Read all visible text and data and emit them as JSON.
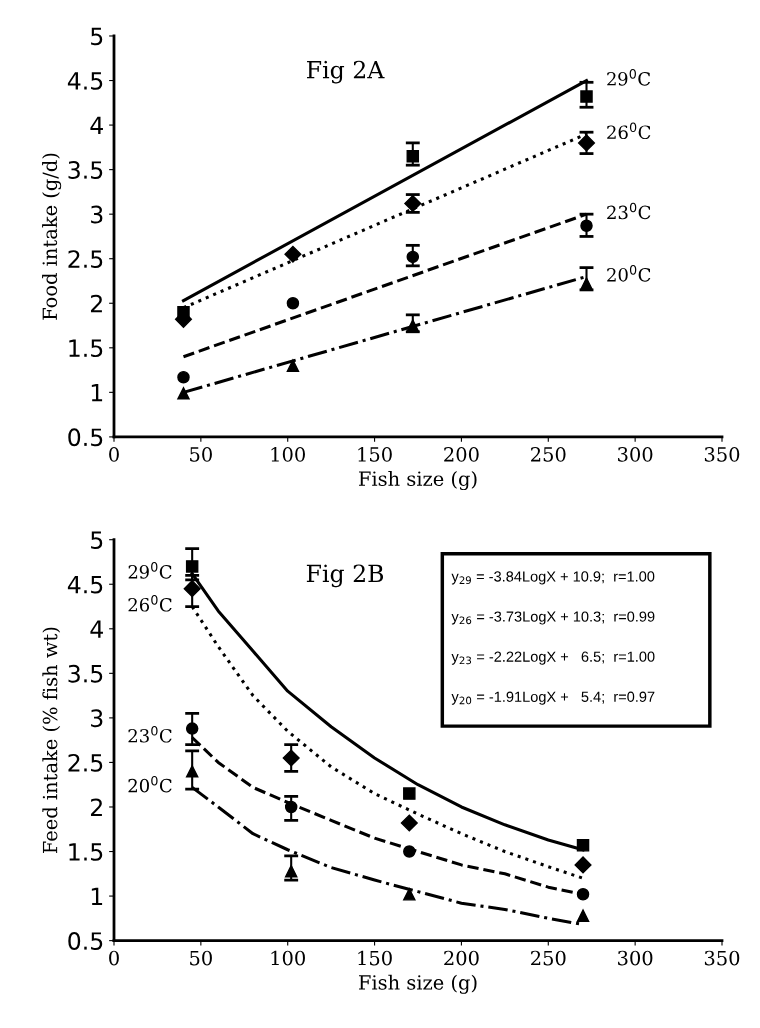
{
  "chart_data": [
    {
      "type": "scatter",
      "title": "Fig 2A",
      "xlabel": "Fish size (g)",
      "ylabel": "Food intake (g/d)",
      "xlim": [
        0,
        350
      ],
      "xticks": [
        0,
        50,
        100,
        150,
        200,
        250,
        300,
        350
      ],
      "ylim": [
        0.5,
        5
      ],
      "yticks": [
        0.5,
        1,
        1.5,
        2,
        2.5,
        3,
        3.5,
        4,
        4.5,
        5
      ],
      "grid": false,
      "legend": false,
      "series": [
        {
          "color": "#000000",
          "marker": "square",
          "x": [
            40,
            172,
            272
          ],
          "values": [
            1.9,
            3.65,
            4.32
          ],
          "errors": [
            null,
            [
              3.55,
              3.8
            ],
            [
              4.2,
              4.48
            ]
          ]
        },
        {
          "color": "#000000",
          "marker": "diamond",
          "x": [
            40,
            103,
            172,
            272
          ],
          "values": [
            1.82,
            2.55,
            3.12,
            3.8
          ],
          "errors": [
            null,
            null,
            [
              3.02,
              3.22
            ],
            [
              3.68,
              3.92
            ]
          ]
        },
        {
          "color": "#000000",
          "marker": "circle",
          "x": [
            40,
            103,
            172,
            272
          ],
          "values": [
            1.17,
            2.0,
            2.52,
            2.87
          ],
          "errors": [
            null,
            null,
            [
              2.42,
              2.65
            ],
            [
              2.75,
              3.0
            ]
          ]
        },
        {
          "color": "#000000",
          "marker": "triangle",
          "x": [
            40,
            103,
            172,
            272
          ],
          "values": [
            0.99,
            1.3,
            1.75,
            2.22
          ],
          "errors": [
            null,
            null,
            [
              1.68,
              1.87
            ],
            [
              2.15,
              2.4
            ]
          ]
        },
        {
          "type": "line",
          "name": "29$^{0}$C",
          "color": "#000000",
          "line_style": "solid",
          "x": [
            40,
            272
          ],
          "values": [
            2.03,
            4.5
          ]
        },
        {
          "type": "line",
          "name": "26$^{0}$C",
          "color": "#000000",
          "line_style": "dotted",
          "x": [
            40,
            272
          ],
          "values": [
            1.95,
            3.9
          ]
        },
        {
          "type": "line",
          "name": "23$^{0}$C",
          "color": "#000000",
          "line_style": "dashed",
          "x": [
            40,
            272
          ],
          "values": [
            1.4,
            3.0
          ]
        },
        {
          "type": "line",
          "name": "20$^{0}$C",
          "color": "#000000",
          "line_style": "dashdot",
          "x": [
            40,
            272
          ],
          "values": [
            1.0,
            2.3
          ]
        }
      ]
    },
    {
      "type": "scatter",
      "title": "Fig 2B",
      "xlabel": "Fish size (g)",
      "ylabel": "Feed intake (% fish wt)",
      "xlim": [
        0,
        350
      ],
      "xticks": [
        0,
        50,
        100,
        150,
        200,
        250,
        300,
        350
      ],
      "ylim": [
        0.5,
        5
      ],
      "yticks": [
        0.5,
        1,
        1.5,
        2,
        2.5,
        3,
        3.5,
        4,
        4.5,
        5
      ],
      "grid": false,
      "legend": false,
      "annotations": [
        "y$_{29}$ = -3.84LogX + 10.9;  r=1.00",
        "y$_{26}$ = -3.73LogX + 10.3;  r=0.99",
        "y$_{23}$ = -2.22LogX +   6.5;  r=1.00",
        "y$_{20}$ = -1.91LogX +   5.4;  r=0.97"
      ],
      "series": [
        {
          "color": "#000000",
          "marker": "square",
          "x": [
            45,
            170,
            270
          ],
          "values": [
            4.7,
            2.15,
            1.57
          ],
          "errors": [
            [
              4.55,
              4.9
            ],
            null,
            null
          ]
        },
        {
          "color": "#000000",
          "marker": "diamond",
          "x": [
            45,
            102,
            170,
            270
          ],
          "values": [
            4.45,
            2.55,
            1.82,
            1.35
          ],
          "errors": [
            [
              4.25,
              4.6
            ],
            [
              2.4,
              2.7
            ],
            null,
            null
          ]
        },
        {
          "color": "#000000",
          "marker": "circle",
          "x": [
            45,
            102,
            170,
            270
          ],
          "values": [
            2.88,
            2.0,
            1.5,
            1.02
          ],
          "errors": [
            [
              2.7,
              3.05
            ],
            [
              1.85,
              2.12
            ],
            null,
            null
          ]
        },
        {
          "color": "#000000",
          "marker": "triangle",
          "x": [
            45,
            102,
            170,
            270
          ],
          "values": [
            2.4,
            1.28,
            1.02,
            0.78
          ],
          "errors": [
            [
              2.2,
              2.63
            ],
            [
              1.18,
              1.45
            ],
            null,
            null
          ]
        },
        {
          "type": "line",
          "name": "29$^{0}$C",
          "color": "#000000",
          "line_style": "solid",
          "x": [
            45,
            60,
            80,
            100,
            125,
            150,
            175,
            200,
            225,
            250,
            270
          ],
          "values": [
            4.62,
            4.2,
            3.75,
            3.3,
            2.9,
            2.55,
            2.25,
            2.0,
            1.8,
            1.63,
            1.52
          ]
        },
        {
          "type": "line",
          "name": "26$^{0}$C",
          "color": "#000000",
          "line_style": "dotted",
          "x": [
            45,
            60,
            80,
            100,
            125,
            150,
            175,
            200,
            225,
            250,
            270
          ],
          "values": [
            4.25,
            3.8,
            3.25,
            2.85,
            2.45,
            2.15,
            1.92,
            1.7,
            1.5,
            1.33,
            1.2
          ]
        },
        {
          "type": "line",
          "name": "23$^{0}$C",
          "color": "#000000",
          "line_style": "dashed",
          "x": [
            45,
            60,
            80,
            100,
            125,
            150,
            175,
            200,
            225,
            250,
            270
          ],
          "values": [
            2.78,
            2.5,
            2.22,
            2.05,
            1.85,
            1.65,
            1.5,
            1.35,
            1.25,
            1.1,
            1.02
          ]
        },
        {
          "type": "line",
          "name": "20$^{0}$C",
          "color": "#000000",
          "line_style": "dashdot",
          "x": [
            45,
            60,
            80,
            100,
            125,
            150,
            175,
            200,
            225,
            250,
            270
          ],
          "values": [
            2.22,
            2.0,
            1.7,
            1.52,
            1.32,
            1.18,
            1.05,
            0.92,
            0.85,
            0.75,
            0.68
          ]
        }
      ]
    }
  ]
}
